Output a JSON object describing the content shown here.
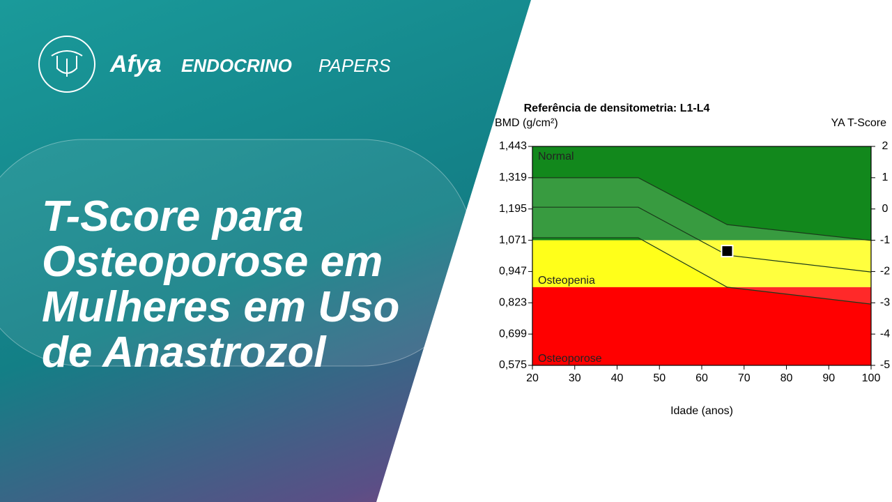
{
  "brand": {
    "name": "Afya",
    "product_bold": "ENDOCRINO",
    "product_light": "PAPERS"
  },
  "headline": [
    "T-Score para",
    "Osteoporose em",
    "Mulheres em Uso",
    "de Anastrozol"
  ],
  "chart_data": {
    "type": "line",
    "title": "Referência de densitometria: L1-L4",
    "ylabel": "BMD (g/cm²)",
    "y2label": "YA T-Score",
    "xlabel": "Idade (anos)",
    "xlim": [
      20,
      100
    ],
    "xticks": [
      20,
      30,
      40,
      50,
      60,
      70,
      80,
      90,
      100
    ],
    "ylim": [
      0.575,
      1.443
    ],
    "yticks": [
      {
        "value": 1.443,
        "label": "1,443"
      },
      {
        "value": 1.319,
        "label": "1,319"
      },
      {
        "value": 1.195,
        "label": "1,195"
      },
      {
        "value": 1.071,
        "label": "1,071"
      },
      {
        "value": 0.947,
        "label": "0,947"
      },
      {
        "value": 0.823,
        "label": "0,823"
      },
      {
        "value": 0.699,
        "label": "0,699"
      },
      {
        "value": 0.575,
        "label": "0,575"
      }
    ],
    "y2lim": [
      -5,
      2
    ],
    "y2ticks": [
      2,
      1,
      0,
      -1,
      -2,
      -3,
      -4,
      -5
    ],
    "zones": [
      {
        "name": "Normal",
        "from": -1,
        "to": 2,
        "color": "#12881c"
      },
      {
        "name": "Osteopenia",
        "from": -2.5,
        "to": -1,
        "color": "#ffff1a"
      },
      {
        "name": "Osteoporose",
        "from": -5,
        "to": -2.5,
        "color": "#ff0000"
      }
    ],
    "x": [
      20,
      45,
      66,
      100
    ],
    "series": [
      {
        "color": "#1a3a1a",
        "values": [
          1.319,
          1.319,
          1.133,
          1.07
        ]
      },
      {
        "color": "#1a3a1a",
        "values": [
          1.202,
          1.202,
          1.012,
          0.945
        ]
      },
      {
        "color": "#1a3a1a",
        "values": [
          1.081,
          1.081,
          0.885,
          0.818
        ]
      }
    ],
    "point": {
      "x": 66,
      "y": 1.028
    }
  }
}
